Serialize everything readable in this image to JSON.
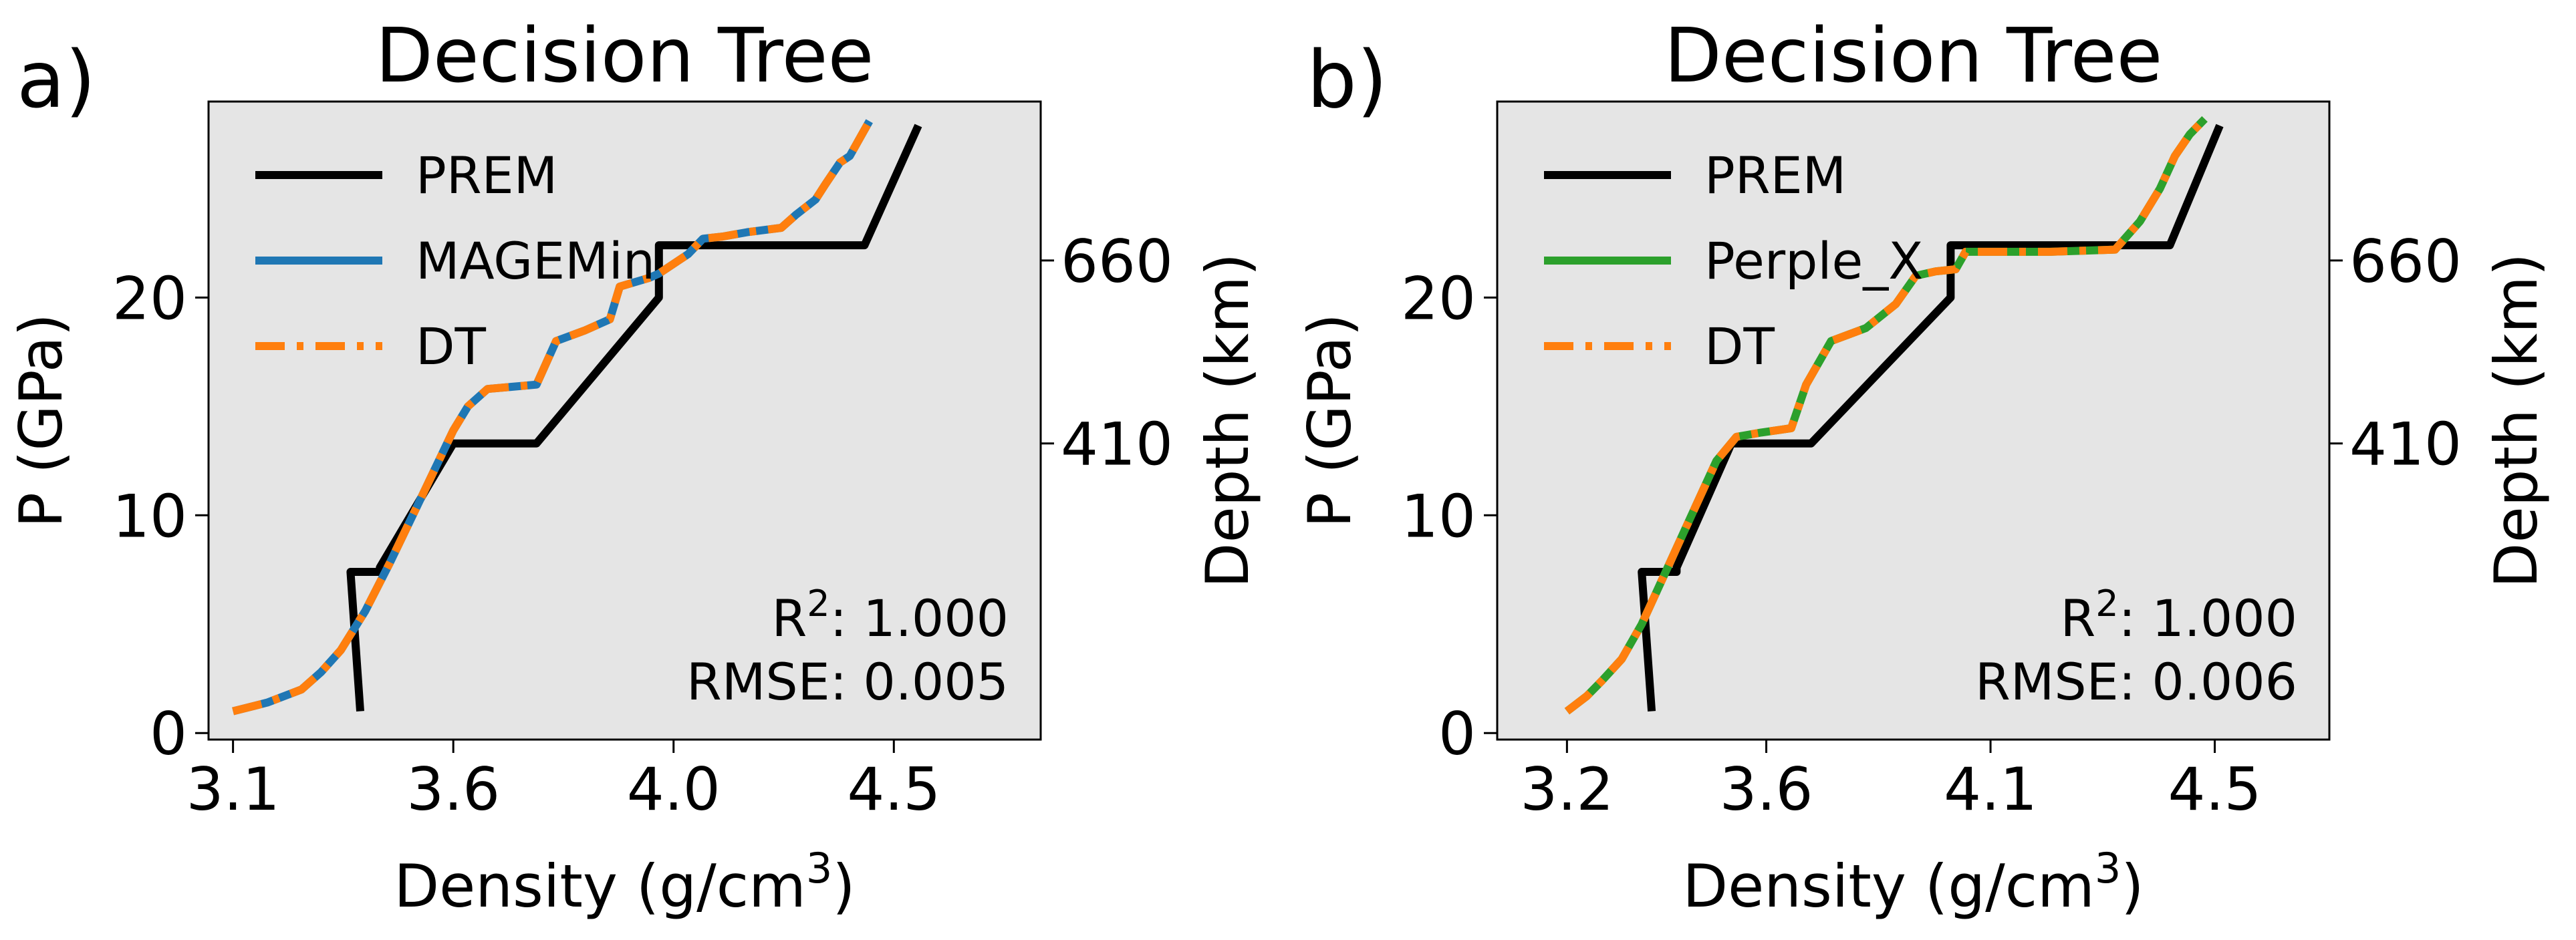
{
  "chart_data": [
    {
      "panel_label": "a)",
      "type": "line",
      "title": "Decision Tree",
      "xlabel": "Density (g/cm",
      "xlabel_sup": "3",
      "xlabel_end": ")",
      "ylabel": "P (GPa)",
      "y2label": "Depth (km)",
      "xlim": [
        3.05,
        4.75
      ],
      "ylim": [
        -0.3,
        29.0
      ],
      "x_ticks": [
        {
          "v": 3.1,
          "label": "3.1"
        },
        {
          "v": 3.55,
          "label": "3.6"
        },
        {
          "v": 4.0,
          "label": "4.0"
        },
        {
          "v": 4.45,
          "label": "4.5"
        }
      ],
      "y_ticks": [
        {
          "v": 0,
          "label": "0"
        },
        {
          "v": 10,
          "label": "10"
        },
        {
          "v": 20,
          "label": "20"
        }
      ],
      "y2_ticks": [
        {
          "v": 13.3,
          "label": "410"
        },
        {
          "v": 21.7,
          "label": "660"
        }
      ],
      "grid": false,
      "legend_position": "upper-left",
      "stats": {
        "r2_label": "R",
        "r2_sup": "2",
        "r2_value": ": 1.000",
        "rmse_text": "RMSE: 0.005"
      },
      "series": [
        {
          "name": "PREM",
          "color": "#000000",
          "style": "solid",
          "x": [
            3.36,
            3.34,
            3.4,
            3.4,
            3.55,
            3.55,
            3.72,
            3.72,
            3.97,
            3.97,
            4.39,
            4.39,
            4.5
          ],
          "y": [
            1.0,
            7.4,
            7.4,
            7.6,
            13.3,
            13.3,
            13.3,
            13.3,
            20.0,
            22.4,
            22.4,
            22.4,
            27.9
          ]
        },
        {
          "name": "MAGEMin",
          "color": "#1f77b4",
          "style": "solid",
          "x": [
            3.1,
            3.17,
            3.24,
            3.28,
            3.32,
            3.37,
            3.42,
            3.48,
            3.55,
            3.58,
            3.62,
            3.72,
            3.76,
            3.82,
            3.87,
            3.89,
            3.95,
            3.97,
            4.03,
            4.06,
            4.1,
            4.15,
            4.22,
            4.25,
            4.29,
            4.31,
            4.34,
            4.36,
            4.38,
            4.4
          ],
          "y": [
            1.0,
            1.4,
            2.0,
            2.8,
            3.8,
            5.6,
            7.8,
            10.6,
            13.9,
            15.0,
            15.8,
            16.0,
            18.0,
            18.5,
            19.0,
            20.5,
            20.9,
            21.1,
            22.0,
            22.7,
            22.8,
            23.0,
            23.2,
            23.8,
            24.5,
            25.2,
            26.2,
            26.5,
            27.3,
            28.1
          ]
        },
        {
          "name": "DT",
          "color": "#ff7f0e",
          "style": "dashdot",
          "x": [
            3.1,
            3.17,
            3.24,
            3.28,
            3.32,
            3.37,
            3.42,
            3.48,
            3.55,
            3.58,
            3.62,
            3.72,
            3.76,
            3.82,
            3.87,
            3.89,
            3.95,
            3.97,
            4.03,
            4.06,
            4.1,
            4.15,
            4.22,
            4.25,
            4.29,
            4.31,
            4.34,
            4.36,
            4.38,
            4.4
          ],
          "y": [
            1.0,
            1.4,
            2.0,
            2.8,
            3.8,
            5.6,
            7.8,
            10.6,
            13.9,
            15.0,
            15.8,
            16.0,
            18.0,
            18.5,
            19.0,
            20.5,
            20.9,
            21.1,
            22.0,
            22.7,
            22.8,
            23.0,
            23.2,
            23.8,
            24.5,
            25.2,
            26.2,
            26.5,
            27.3,
            28.1
          ]
        }
      ]
    },
    {
      "panel_label": "b)",
      "type": "line",
      "title": "Decision Tree",
      "xlabel": "Density (g/cm",
      "xlabel_sup": "3",
      "xlabel_end": ")",
      "ylabel": "P (GPa)",
      "y2label": "Depth (km)",
      "xlim": [
        3.06,
        4.73
      ],
      "ylim": [
        -0.3,
        29.0
      ],
      "x_ticks": [
        {
          "v": 3.2,
          "label": "3.2"
        },
        {
          "v": 3.6,
          "label": "3.6"
        },
        {
          "v": 4.05,
          "label": "4.1"
        },
        {
          "v": 4.5,
          "label": "4.5"
        }
      ],
      "y_ticks": [
        {
          "v": 0,
          "label": "0"
        },
        {
          "v": 10,
          "label": "10"
        },
        {
          "v": 20,
          "label": "20"
        }
      ],
      "y2_ticks": [
        {
          "v": 13.3,
          "label": "410"
        },
        {
          "v": 21.7,
          "label": "660"
        }
      ],
      "grid": false,
      "legend_position": "upper-left",
      "stats": {
        "r2_label": "R",
        "r2_sup": "2",
        "r2_value": ": 1.000",
        "rmse_text": "RMSE: 0.006"
      },
      "series": [
        {
          "name": "PREM",
          "color": "#000000",
          "style": "solid",
          "x": [
            3.37,
            3.35,
            3.42,
            3.42,
            3.53,
            3.53,
            3.69,
            3.69,
            3.97,
            3.97,
            4.41,
            4.41,
            4.51
          ],
          "y": [
            1.0,
            7.4,
            7.4,
            7.6,
            13.3,
            13.3,
            13.3,
            13.3,
            20.0,
            22.4,
            22.4,
            22.4,
            27.9
          ]
        },
        {
          "name": "Perple_X",
          "color": "#2ca02c",
          "style": "solid",
          "x": [
            3.2,
            3.24,
            3.27,
            3.31,
            3.35,
            3.4,
            3.45,
            3.5,
            3.54,
            3.59,
            3.65,
            3.68,
            3.73,
            3.8,
            3.86,
            3.9,
            3.94,
            3.98,
            4.0,
            4.07,
            4.17,
            4.3,
            4.35,
            4.39,
            4.42,
            4.45,
            4.48
          ],
          "y": [
            1.0,
            1.7,
            2.4,
            3.4,
            5.0,
            7.5,
            10.0,
            12.5,
            13.6,
            13.8,
            14.0,
            16.0,
            18.0,
            18.6,
            19.7,
            21.0,
            21.2,
            21.3,
            22.1,
            22.1,
            22.1,
            22.2,
            23.5,
            25.0,
            26.5,
            27.5,
            28.2
          ]
        },
        {
          "name": "DT",
          "color": "#ff7f0e",
          "style": "dashdot",
          "x": [
            3.2,
            3.24,
            3.27,
            3.31,
            3.35,
            3.4,
            3.45,
            3.5,
            3.54,
            3.59,
            3.65,
            3.68,
            3.73,
            3.8,
            3.86,
            3.9,
            3.94,
            3.98,
            4.0,
            4.07,
            4.17,
            4.3,
            4.35,
            4.39,
            4.42,
            4.45,
            4.48
          ],
          "y": [
            1.0,
            1.7,
            2.4,
            3.4,
            5.0,
            7.5,
            10.0,
            12.5,
            13.6,
            13.8,
            14.0,
            16.0,
            18.0,
            18.6,
            19.7,
            21.0,
            21.2,
            21.3,
            22.1,
            22.1,
            22.1,
            22.2,
            23.5,
            25.0,
            26.5,
            27.5,
            28.2
          ]
        }
      ]
    }
  ]
}
